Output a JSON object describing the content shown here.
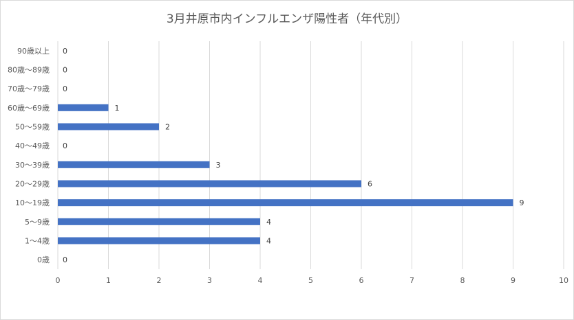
{
  "chart_data": {
    "type": "bar",
    "orientation": "horizontal",
    "title": "3月井原市内インフルエンザ陽性者（年代別）",
    "xlabel": "",
    "ylabel": "",
    "categories": [
      "0歳",
      "1〜4歳",
      "5〜9歳",
      "10〜19歳",
      "20〜29歳",
      "30〜39歳",
      "40〜49歳",
      "50〜59歳",
      "60歳〜69歳",
      "70歳〜79歳",
      "80歳〜89歳",
      "90歳以上"
    ],
    "values": [
      0,
      4,
      4,
      9,
      6,
      3,
      0,
      2,
      1,
      0,
      0,
      0
    ],
    "xlim": [
      0,
      10
    ],
    "xticks": [
      "0",
      "1",
      "2",
      "3",
      "4",
      "5",
      "6",
      "7",
      "8",
      "9",
      "10"
    ],
    "grid": true,
    "legend": "none",
    "bar_color": "#4472C4"
  }
}
